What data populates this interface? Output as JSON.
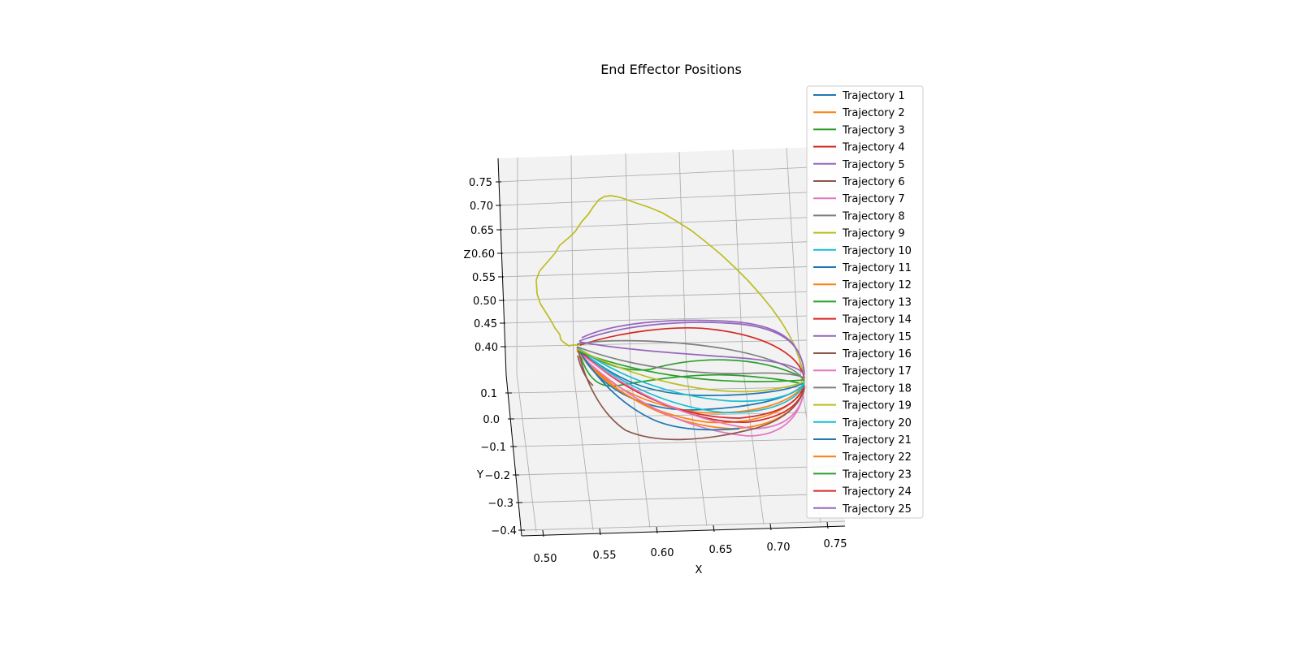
{
  "chart_data": {
    "type": "line",
    "projection": "3d",
    "title": "End Effector Positions",
    "xlabel": "X",
    "ylabel": "Y",
    "zlabel": "Z",
    "x_ticks": [
      "0.50",
      "0.55",
      "0.60",
      "0.65",
      "0.70",
      "0.75"
    ],
    "y_ticks": [
      "0.1",
      "0.0",
      "−0.1",
      "−0.2",
      "−0.3",
      "−0.4"
    ],
    "z_ticks": [
      "0.75",
      "0.70",
      "0.65",
      "0.60",
      "0.55",
      "0.50",
      "0.45",
      "0.40"
    ],
    "grid": true,
    "legend_position": "upper right",
    "series": [
      {
        "name": "Trajectory 1",
        "color": "#1f77b4"
      },
      {
        "name": "Trajectory 2",
        "color": "#ff7f0e"
      },
      {
        "name": "Trajectory 3",
        "color": "#2ca02c"
      },
      {
        "name": "Trajectory 4",
        "color": "#d62728"
      },
      {
        "name": "Trajectory 5",
        "color": "#9467bd"
      },
      {
        "name": "Trajectory 6",
        "color": "#8c564b"
      },
      {
        "name": "Trajectory 7",
        "color": "#e377c2"
      },
      {
        "name": "Trajectory 8",
        "color": "#7f7f7f"
      },
      {
        "name": "Trajectory 9",
        "color": "#bcbd22"
      },
      {
        "name": "Trajectory 10",
        "color": "#17becf"
      },
      {
        "name": "Trajectory 11",
        "color": "#1f77b4"
      },
      {
        "name": "Trajectory 12",
        "color": "#ff7f0e"
      },
      {
        "name": "Trajectory 13",
        "color": "#2ca02c"
      },
      {
        "name": "Trajectory 14",
        "color": "#d62728"
      },
      {
        "name": "Trajectory 15",
        "color": "#9467bd"
      },
      {
        "name": "Trajectory 16",
        "color": "#8c564b"
      },
      {
        "name": "Trajectory 17",
        "color": "#e377c2"
      },
      {
        "name": "Trajectory 18",
        "color": "#7f7f7f"
      },
      {
        "name": "Trajectory 19",
        "color": "#bcbd22"
      },
      {
        "name": "Trajectory 20",
        "color": "#17becf"
      },
      {
        "name": "Trajectory 21",
        "color": "#1f77b4"
      },
      {
        "name": "Trajectory 22",
        "color": "#ff7f0e"
      },
      {
        "name": "Trajectory 23",
        "color": "#2ca02c"
      },
      {
        "name": "Trajectory 24",
        "color": "#d62728"
      },
      {
        "name": "Trajectory 25",
        "color": "#9467bd"
      }
    ]
  }
}
